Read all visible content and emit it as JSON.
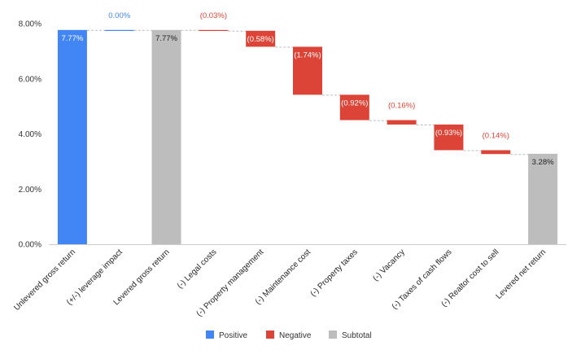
{
  "chart_data": {
    "type": "waterfall",
    "title": "",
    "xlabel": "",
    "ylabel": "",
    "ylim": [
      0,
      8
    ],
    "y_ticks": [
      "0.00%",
      "2.00%",
      "4.00%",
      "6.00%",
      "8.00%"
    ],
    "grid": false,
    "legend_position": "bottom",
    "legend": [
      {
        "name": "Positive",
        "color": "#4285f4"
      },
      {
        "name": "Negative",
        "color": "#db4437"
      },
      {
        "name": "Subtotal",
        "color": "#bdbdbd"
      }
    ],
    "categories": [
      {
        "label": "Unlevered gross return",
        "kind": "subtotal",
        "color": "#4285f4",
        "start": 0,
        "end": 7.77,
        "data_label": "7.77%",
        "label_color": "#ffffff",
        "label_pos": "inside"
      },
      {
        "label": "(+/-) leverage impact",
        "kind": "positive",
        "color": "#4285f4",
        "start": 7.77,
        "end": 7.77,
        "data_label": "0.00%",
        "label_color": "#4285f4",
        "label_pos": "above"
      },
      {
        "label": "Levered gross return",
        "kind": "subtotal",
        "color": "#bdbdbd",
        "start": 0,
        "end": 7.77,
        "data_label": "7.77%",
        "label_color": "#222222",
        "label_pos": "inside"
      },
      {
        "label": "(-) Legal costs",
        "kind": "negative",
        "color": "#db4437",
        "start": 7.77,
        "end": 7.74,
        "data_label": "(0.03%)",
        "label_color": "#db4437",
        "label_pos": "above"
      },
      {
        "label": "(-) Property management",
        "kind": "negative",
        "color": "#db4437",
        "start": 7.74,
        "end": 7.16,
        "data_label": "(0.58%)",
        "label_color": "#ffffff",
        "label_pos": "inside"
      },
      {
        "label": "(-) Maintenance cost",
        "kind": "negative",
        "color": "#db4437",
        "start": 7.16,
        "end": 5.42,
        "data_label": "(1.74%)",
        "label_color": "#ffffff",
        "label_pos": "inside"
      },
      {
        "label": "(-) Property taxes",
        "kind": "negative",
        "color": "#db4437",
        "start": 5.42,
        "end": 4.5,
        "data_label": "(0.92%)",
        "label_color": "#ffffff",
        "label_pos": "inside"
      },
      {
        "label": "(-) Vacancy",
        "kind": "negative",
        "color": "#db4437",
        "start": 4.5,
        "end": 4.34,
        "data_label": "(0.16%)",
        "label_color": "#db4437",
        "label_pos": "above"
      },
      {
        "label": "(-) Taxes of cash flows",
        "kind": "negative",
        "color": "#db4437",
        "start": 4.34,
        "end": 3.41,
        "data_label": "(0.93%)",
        "label_color": "#ffffff",
        "label_pos": "inside"
      },
      {
        "label": "(-) Realtor cost to sell",
        "kind": "negative",
        "color": "#db4437",
        "start": 3.41,
        "end": 3.27,
        "data_label": "(0.14%)",
        "label_color": "#db4437",
        "label_pos": "above"
      },
      {
        "label": "Levered net return",
        "kind": "subtotal",
        "color": "#bdbdbd",
        "start": 0,
        "end": 3.28,
        "data_label": "3.28%",
        "label_color": "#222222",
        "label_pos": "inside"
      }
    ]
  }
}
